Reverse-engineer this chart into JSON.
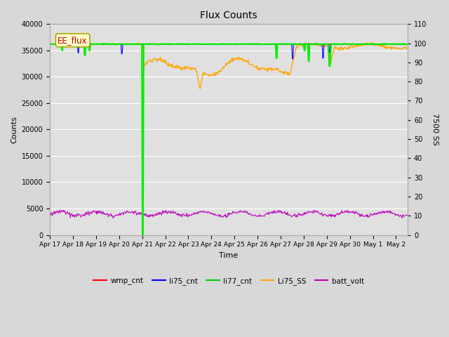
{
  "title": "Flux Counts",
  "xlabel": "Time",
  "ylabel_left": "Counts",
  "ylabel_right": "7500 SS",
  "fig_bg_color": "#d8d8d8",
  "plot_bg_color": "#e0e0e0",
  "xlim": [
    0,
    15.5
  ],
  "ylim_left": [
    0,
    40000
  ],
  "ylim_right": [
    0,
    110
  ],
  "yticks_left": [
    0,
    5000,
    10000,
    15000,
    20000,
    25000,
    30000,
    35000,
    40000
  ],
  "yticks_right": [
    0,
    10,
    20,
    30,
    40,
    50,
    60,
    70,
    80,
    90,
    100,
    110
  ],
  "xtick_positions": [
    0,
    1,
    2,
    3,
    4,
    5,
    6,
    7,
    8,
    9,
    10,
    11,
    12,
    13,
    14,
    15
  ],
  "xtick_labels": [
    "Apr 17",
    "Apr 18",
    "Apr 19",
    "Apr 20",
    "Apr 21",
    "Apr 22",
    "Apr 23",
    "Apr 24",
    "Apr 25",
    "Apr 26",
    "Apr 27",
    "Apr 28",
    "Apr 29",
    "Apr 30",
    "May 1",
    "May 2"
  ],
  "legend_labels": [
    "wmp_cnt",
    "li75_cnt",
    "li77_cnt",
    "Li75_SS",
    "batt_volt"
  ],
  "legend_colors": [
    "#ff0000",
    "#0000ff",
    "#00cc00",
    "#ffa500",
    "#bb00bb"
  ],
  "annotation_text": "EE_flux",
  "annotation_fg": "#cc0000",
  "annotation_bg": "#ffffcc",
  "annotation_edge": "#aaaa00",
  "grid_color": "#ffffff",
  "wmp_color": "#ff0000",
  "li75_color": "#0000ff",
  "li77_color": "#00ee00",
  "Li75_SS_color": "#ffa500",
  "batt_color": "#bb00bb",
  "base_level": 36200,
  "batt_base": 4000,
  "Li75_SS_base_before": 36200,
  "Li75_SS_after_base": 32000,
  "Li75_SS_dip_val": 28000
}
